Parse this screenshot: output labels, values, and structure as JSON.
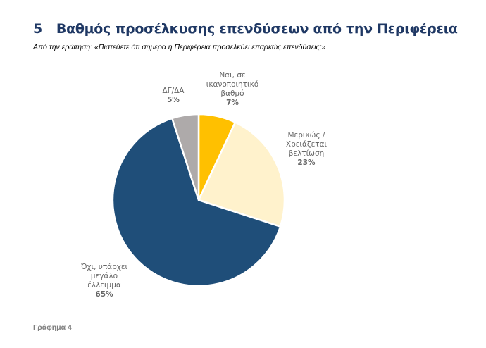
{
  "header": {
    "number": "5",
    "title": "Βαθμός προσέλκυσης επενδύσεων από την Περιφέρεια",
    "subtitle": "Από την ερώτηση: «Πιστεύετε ότι σήμερα η Περιφέρεια προσελκύει επαρκώς επενδύσεις;»"
  },
  "caption": "Γράφημα 4",
  "chart_data": {
    "type": "pie",
    "title": "Βαθμός προσέλκυσης επενδύσεων από την Περιφέρεια",
    "start": "top, clockwise",
    "slices": [
      {
        "label_lines": [
          "Ναι, σε",
          "ικανοποιητικό",
          "βαθμό"
        ],
        "value": 7,
        "pct_label": "7%",
        "color": "#FFC000"
      },
      {
        "label_lines": [
          "Μερικώς /",
          "Χρειάζεται",
          "βελτίωση"
        ],
        "value": 23,
        "pct_label": "23%",
        "color": "#FFF2CC"
      },
      {
        "label_lines": [
          "Όχι, υπάρχει",
          "μεγάλο",
          "έλλειμμα"
        ],
        "value": 65,
        "pct_label": "65%",
        "color": "#1F4E79"
      },
      {
        "label_lines": [
          "ΔΓ/ΔΑ"
        ],
        "value": 5,
        "pct_label": "5%",
        "color": "#AEAAAA"
      }
    ]
  }
}
